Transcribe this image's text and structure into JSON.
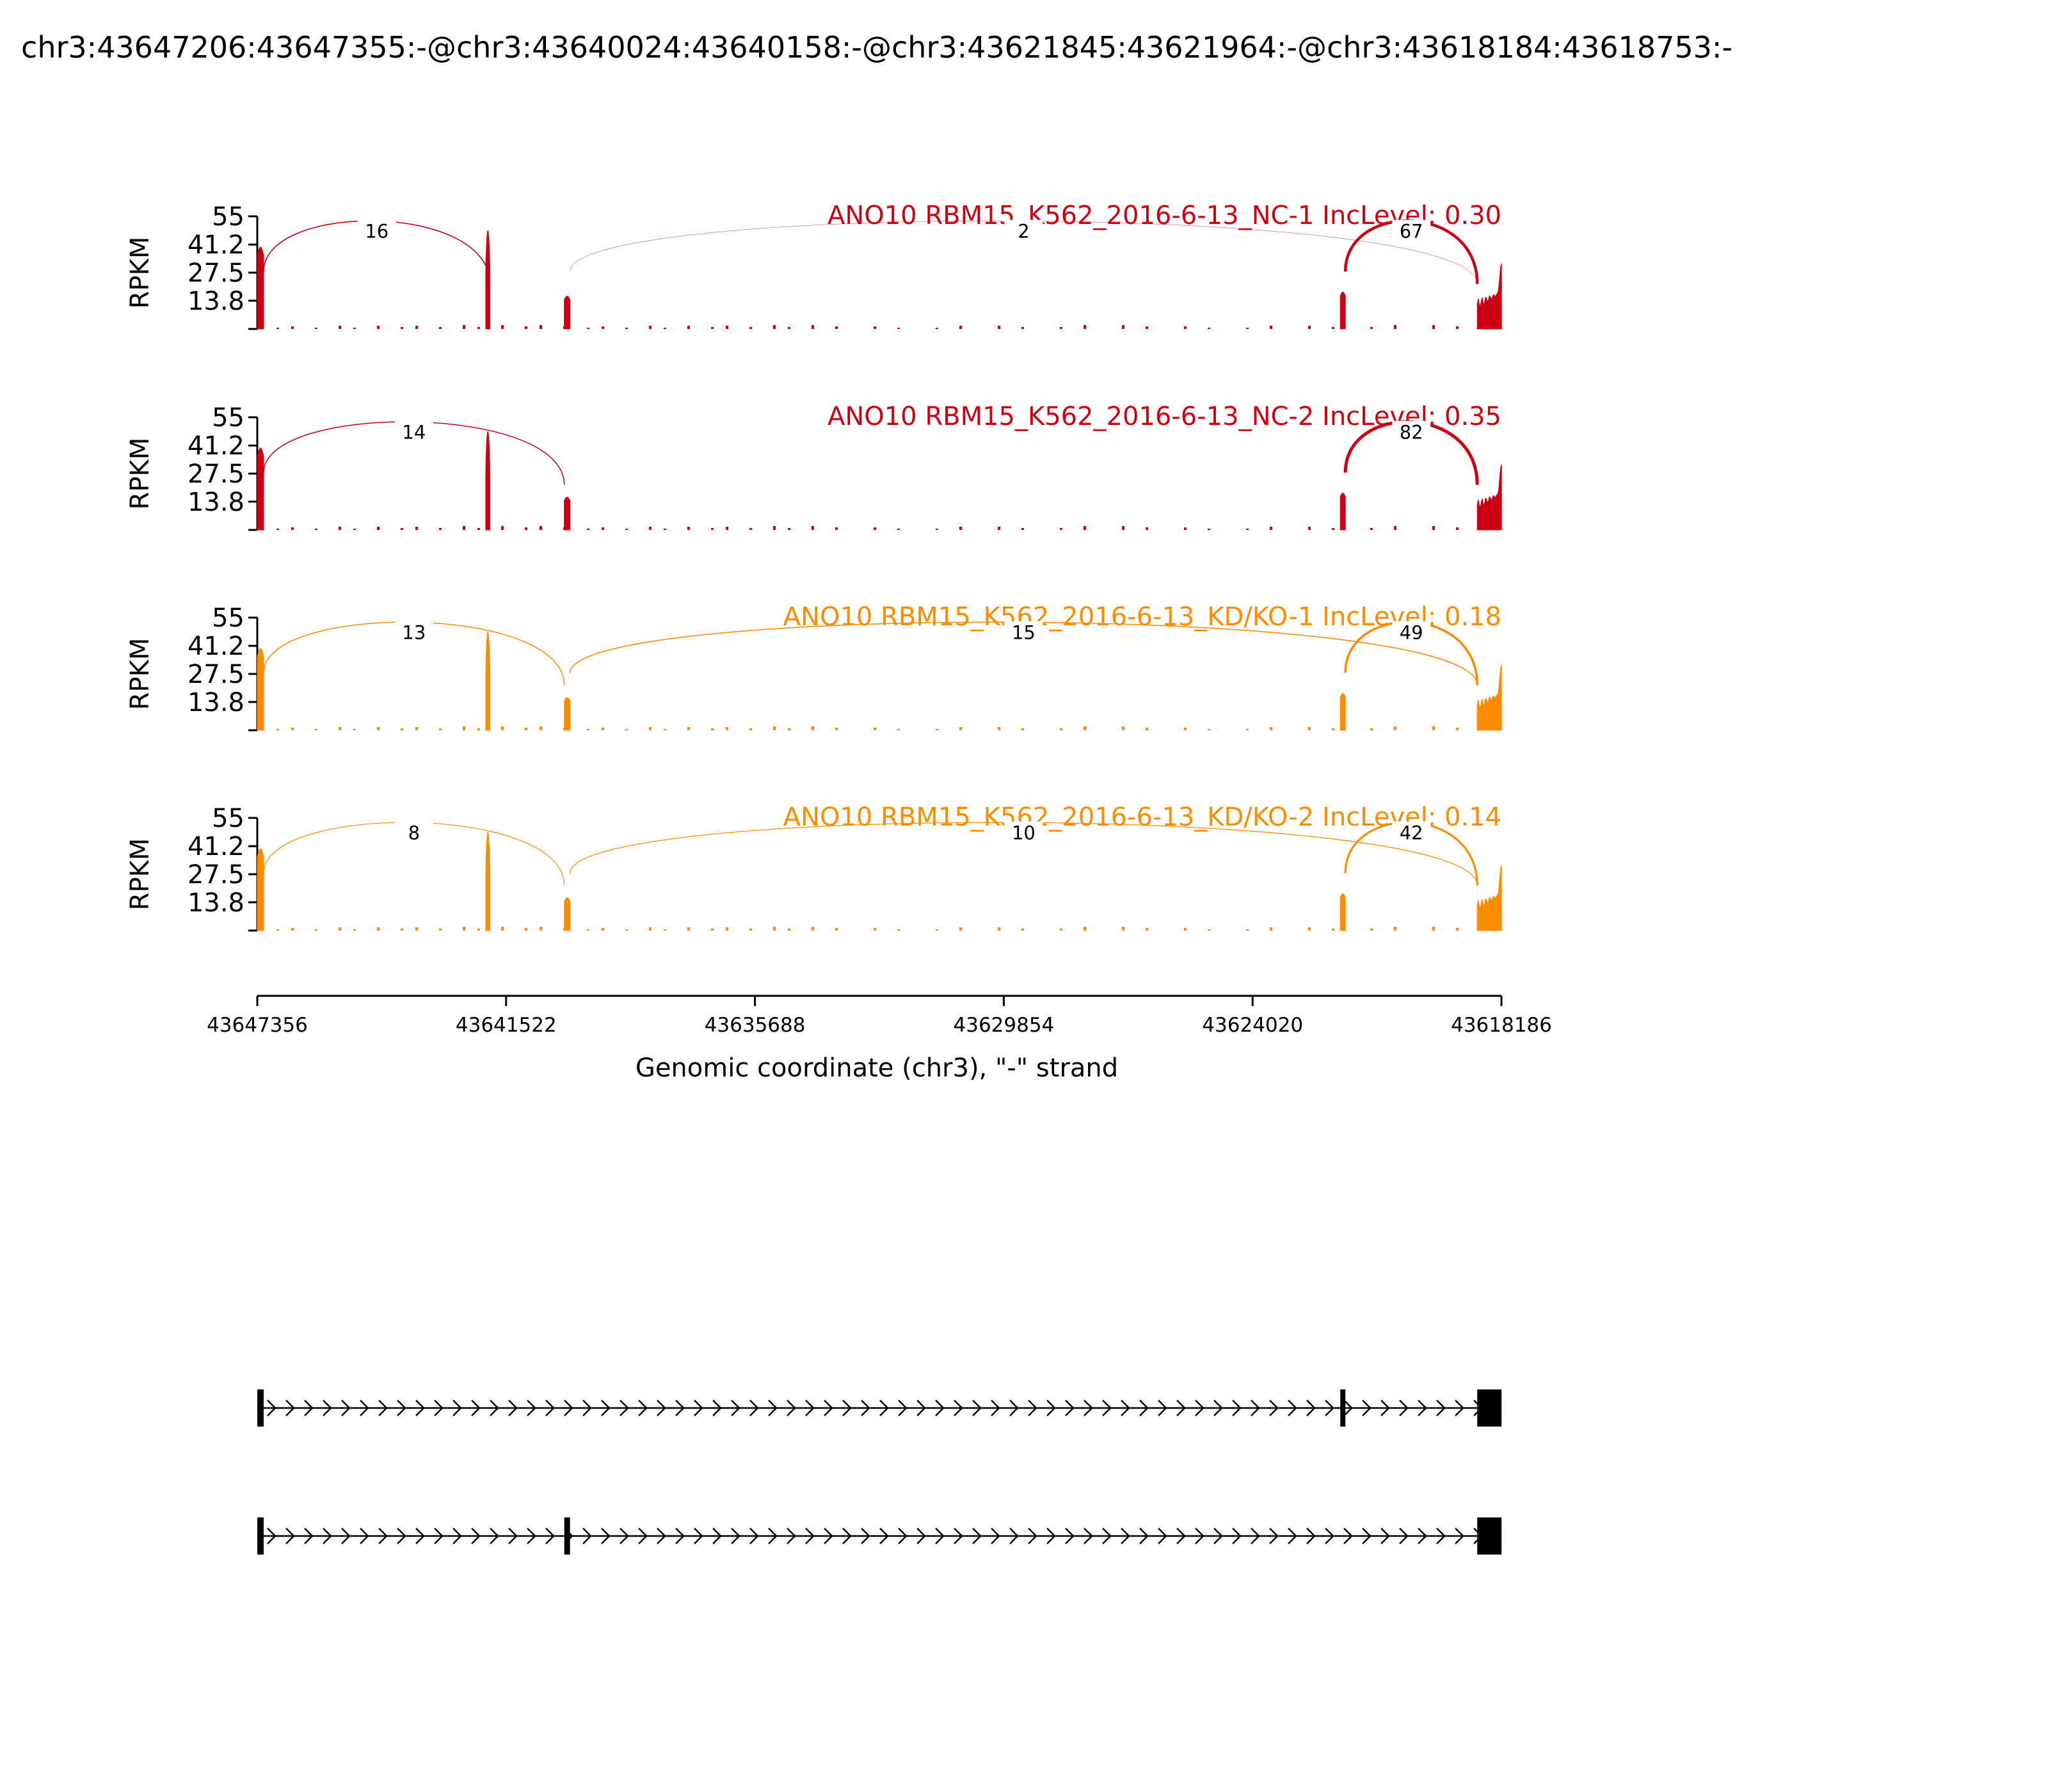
{
  "title": "chr3:43647206:43647355:-@chr3:43640024:43640158:-@chr3:43621845:43621964:-@chr3:43618184:43618753:-",
  "chart_data": {
    "type": "sashimi",
    "ylabel": "RPKM",
    "ylim": [
      0,
      55
    ],
    "yticks": [
      "55",
      "41.2",
      "27.5",
      "13.8"
    ],
    "ytick_values": [
      55,
      41.2,
      27.5,
      13.8
    ],
    "xlim": [
      43647356,
      43618186
    ],
    "xticks": [
      "43647356",
      "43641522",
      "43635688",
      "43629854",
      "43624020",
      "43618186"
    ],
    "xtick_values": [
      43647356,
      43641522,
      43635688,
      43629854,
      43624020,
      43618186
    ],
    "xlabel": "Genomic coordinate (chr3), \"-\" strand",
    "exons": [
      {
        "start": 43647355,
        "end": 43647206,
        "peak": 40
      },
      {
        "start": 43642000,
        "end": 43641900,
        "peak": 48
      },
      {
        "start": 43640158,
        "end": 43640024,
        "peak": 16
      },
      {
        "start": 43621964,
        "end": 43621845,
        "peak": 18
      },
      {
        "start": 43618753,
        "end": 43618184,
        "peak": 32
      }
    ],
    "tracks": [
      {
        "label": "ANO10 RBM15_K562_2016-6-13_NC-1 IncLevel: 0.30",
        "color": "#cc0012",
        "scale": 1.0,
        "junctions": [
          {
            "from": 43647206,
            "to": 43641900,
            "count": "16",
            "width": 1.6
          },
          {
            "from": 43640024,
            "to": 43618753,
            "count": "2",
            "width": 0.4
          },
          {
            "from": 43621845,
            "to": 43618753,
            "count": "67",
            "width": 4.5
          }
        ]
      },
      {
        "label": "ANO10 RBM15_K562_2016-6-13_NC-2 IncLevel: 0.35",
        "color": "#cc0012",
        "scale": 1.0,
        "junctions": [
          {
            "from": 43647206,
            "to": 43640158,
            "count": "14",
            "width": 1.5
          },
          {
            "from": 43621845,
            "to": 43618753,
            "count": "82",
            "width": 5.0
          }
        ]
      },
      {
        "label": "ANO10 RBM15_K562_2016-6-13_KD/KO-1 IncLevel: 0.18",
        "color": "#ff8c00",
        "scale": 1.0,
        "junctions": [
          {
            "from": 43647206,
            "to": 43640158,
            "count": "13",
            "width": 1.5
          },
          {
            "from": 43640024,
            "to": 43618753,
            "count": "15",
            "width": 1.6
          },
          {
            "from": 43621845,
            "to": 43618753,
            "count": "49",
            "width": 3.6
          }
        ]
      },
      {
        "label": "ANO10 RBM15_K562_2016-6-13_KD/KO-2 IncLevel: 0.14",
        "color": "#ff8c00",
        "scale": 1.0,
        "junctions": [
          {
            "from": 43647206,
            "to": 43640158,
            "count": "8",
            "width": 1.2
          },
          {
            "from": 43640024,
            "to": 43618753,
            "count": "10",
            "width": 1.3
          },
          {
            "from": 43621845,
            "to": 43618753,
            "count": "42",
            "width": 3.2
          }
        ]
      }
    ],
    "isoforms": [
      {
        "exons": [
          [
            43647355,
            43647206
          ],
          [
            43621964,
            43621845
          ],
          [
            43618753,
            43618184
          ]
        ]
      },
      {
        "exons": [
          [
            43647355,
            43647206
          ],
          [
            43640158,
            43640024
          ],
          [
            43618753,
            43618184
          ]
        ]
      }
    ]
  }
}
